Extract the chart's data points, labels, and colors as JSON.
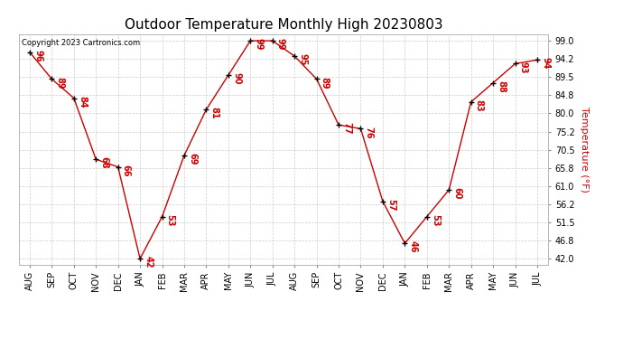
{
  "title": "Outdoor Temperature Monthly High 20230803",
  "copyright": "Copyright 2023 Cartronics.com",
  "ylabel": "Temperature (°F)",
  "months": [
    "AUG",
    "SEP",
    "OCT",
    "NOV",
    "DEC",
    "JAN",
    "FEB",
    "MAR",
    "APR",
    "MAY",
    "JUN",
    "JUL",
    "AUG",
    "SEP",
    "OCT",
    "NOV",
    "DEC",
    "JAN",
    "FEB",
    "MAR",
    "APR",
    "MAY",
    "JUN",
    "JUL"
  ],
  "values": [
    96,
    89,
    84,
    68,
    66,
    42,
    53,
    69,
    81,
    90,
    99,
    99,
    95,
    89,
    77,
    76,
    57,
    46,
    53,
    60,
    83,
    88,
    93,
    94
  ],
  "line_color": "#cc0000",
  "marker_color": "#000000",
  "grid_color": "#cccccc",
  "background_color": "#ffffff",
  "title_fontsize": 11,
  "copyright_fontsize": 6,
  "ylabel_fontsize": 8,
  "tick_fontsize": 7,
  "yticks": [
    42.0,
    46.8,
    51.5,
    56.2,
    61.0,
    65.8,
    70.5,
    75.2,
    80.0,
    84.8,
    89.5,
    94.2,
    99.0
  ],
  "ylim": [
    40.5,
    100.8
  ],
  "value_label_color": "#cc0000",
  "value_label_fontsize": 7
}
